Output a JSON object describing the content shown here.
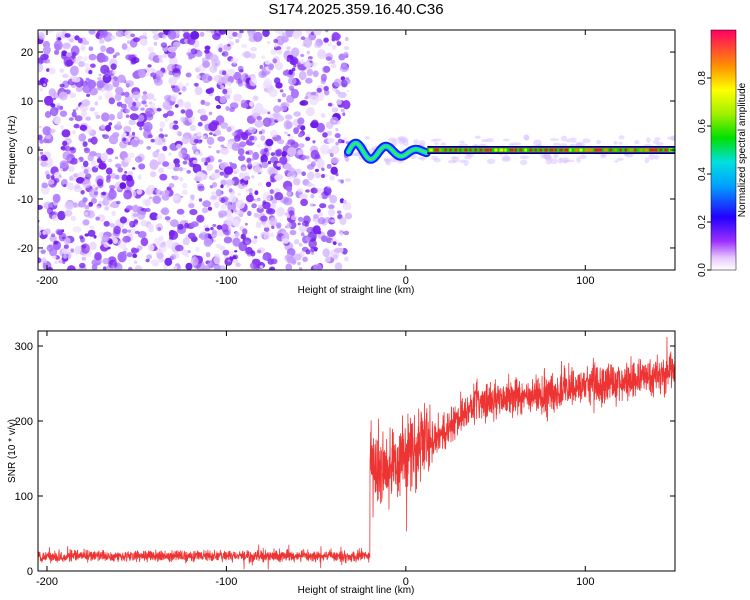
{
  "title": "S174.2025.359.16.40.C36",
  "chart_data": [
    {
      "type": "heatmap",
      "name": "spectrogram",
      "xlabel": "Height of straight line (km)",
      "ylabel": "Frequency (Hz)",
      "xlim": [
        -205,
        150
      ],
      "ylim": [
        -24.5,
        24.5
      ],
      "xticks": [
        -200,
        -100,
        0,
        100
      ],
      "yticks": [
        -20,
        -10,
        0,
        10,
        20
      ],
      "noise_region_x": [
        -205,
        -32
      ],
      "signal_start_x": -32,
      "wobble_region_x": [
        -32,
        12
      ],
      "steady_line_x": [
        12,
        150
      ],
      "steady_frequency": 0,
      "colorbar": {
        "label": "Normalized spectral amplitude",
        "range": [
          0,
          1
        ],
        "ticks": [
          "0.0",
          "0.2",
          "0.4",
          "0.6",
          "0.8"
        ],
        "tick_values": [
          0.0,
          0.2,
          0.4,
          0.6,
          0.8
        ]
      }
    },
    {
      "type": "line",
      "name": "snr",
      "xlabel": "Height of straight line (km)",
      "ylabel": "SNR (10 * v/v)",
      "xlim": [
        -205,
        150
      ],
      "ylim": [
        0,
        320
      ],
      "xticks": [
        -200,
        -100,
        0,
        100
      ],
      "yticks": [
        0,
        100,
        200,
        300
      ],
      "color": "#ee3333",
      "segments": [
        {
          "x_start": -205,
          "x_end": -20,
          "mean": 20,
          "spread": 10
        },
        {
          "x_start": -20,
          "x_end": -18,
          "mean": 150,
          "spread": 80
        },
        {
          "x_start": -18,
          "x_end": 15,
          "mean": 150,
          "spread": 70
        },
        {
          "x_start": 15,
          "x_end": 40,
          "mean": 220,
          "spread": 35
        },
        {
          "x_start": 40,
          "x_end": 150,
          "mean": 255,
          "spread": 35
        }
      ]
    }
  ]
}
